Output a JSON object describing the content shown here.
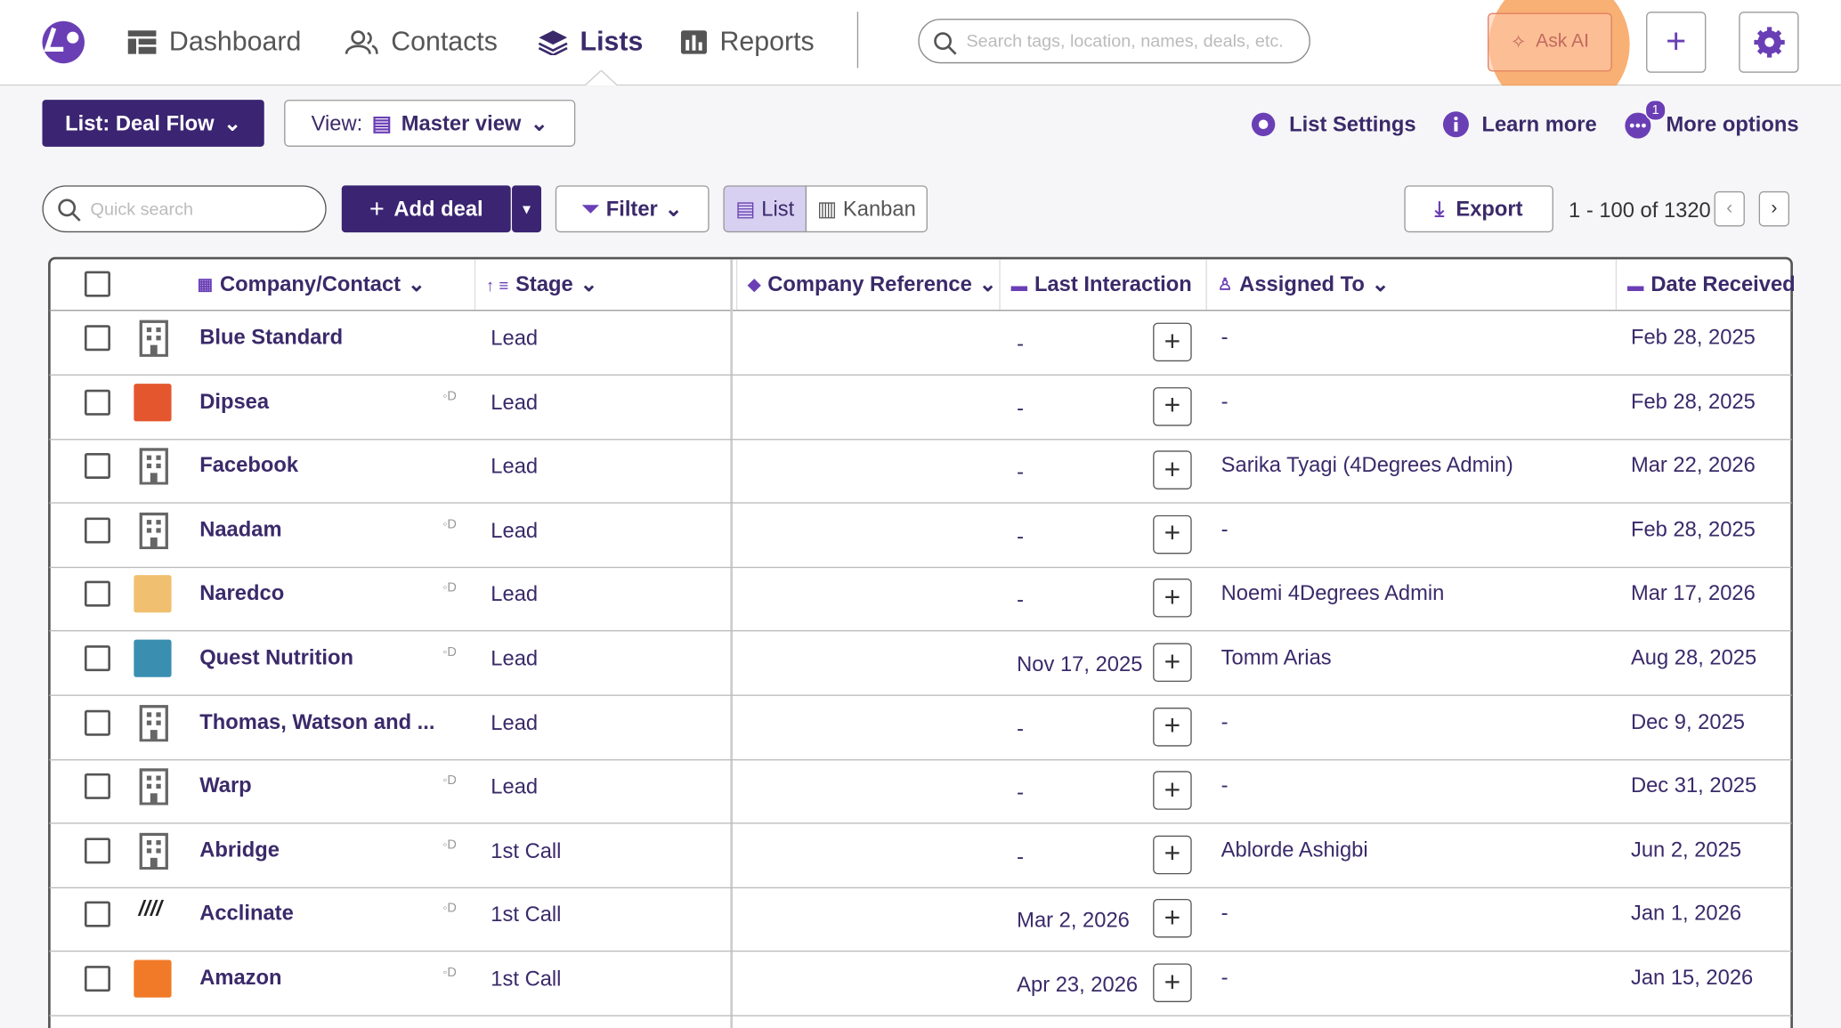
{
  "nav": {
    "items": [
      "Dashboard",
      "Contacts",
      "Lists",
      "Reports"
    ],
    "search_placeholder": "Search tags, location, names, deals, etc.",
    "ask_ai": "Ask AI"
  },
  "toolbar": {
    "list_button": "List: Deal Flow",
    "view_label": "View:",
    "view": "Master view",
    "list_settings": "List Settings",
    "learn_more": "Learn more",
    "more_options": "More options",
    "badge": "1"
  },
  "controls": {
    "quick_search": "Quick search",
    "add_deal": "Add deal",
    "filter": "Filter",
    "list": "List",
    "kanban": "Kanban",
    "export": "Export",
    "pagination": "1 - 100 of 1320"
  },
  "table": {
    "columns": [
      "Company/Contact",
      "Stage",
      "Company Reference",
      "Last Interaction",
      "Assigned To",
      "Date Received"
    ],
    "rows": [
      {
        "company": "Blue Standard",
        "stage": "Lead",
        "last_interaction": "-",
        "assigned": "-",
        "date": "Feb 28, 2025"
      },
      {
        "company": "Dipsea",
        "stage": "Lead",
        "last_interaction": "-",
        "assigned": "-",
        "date": "Feb 28, 2025"
      },
      {
        "company": "Facebook",
        "stage": "Lead",
        "last_interaction": "-",
        "assigned": "Sarika Tyagi (4Degrees Admin)",
        "date": "Mar 22, 2026"
      },
      {
        "company": "Naadam",
        "stage": "Lead",
        "last_interaction": "-",
        "assigned": "-",
        "date": "Feb 28, 2025"
      },
      {
        "company": "Naredco",
        "stage": "Lead",
        "last_interaction": "-",
        "assigned": "Noemi 4Degrees Admin",
        "date": "Mar 17, 2026"
      },
      {
        "company": "Quest Nutrition",
        "stage": "Lead",
        "last_interaction": "Nov 17, 2025",
        "assigned": "Tomm Arias",
        "date": "Aug 28, 2025"
      },
      {
        "company": "Thomas, Watson and ...",
        "stage": "Lead",
        "last_interaction": "-",
        "assigned": "-",
        "date": "Dec 9, 2025"
      },
      {
        "company": "Warp",
        "stage": "Lead",
        "last_interaction": "-",
        "assigned": "-",
        "date": "Dec 31, 2025"
      },
      {
        "company": "Abridge",
        "stage": "1st Call",
        "last_interaction": "-",
        "assigned": "Ablorde Ashigbi",
        "date": "Jun 2, 2025"
      },
      {
        "company": "Acclinate",
        "stage": "1st Call",
        "last_interaction": "Mar 2, 2026",
        "assigned": "-",
        "date": "Jan 1, 2026"
      },
      {
        "company": "Amazon",
        "stage": "1st Call",
        "last_interaction": "Apr 23, 2026",
        "assigned": "-",
        "date": "Jan 15, 2026"
      }
    ]
  }
}
